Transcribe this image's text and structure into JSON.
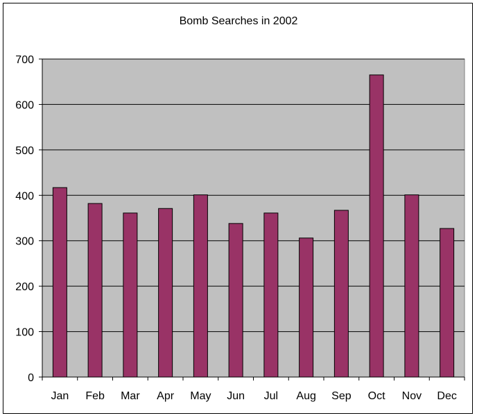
{
  "chart_data": {
    "type": "bar",
    "title": "Bomb Searches in 2002",
    "xlabel": "",
    "ylabel": "",
    "categories": [
      "Jan",
      "Feb",
      "Mar",
      "Apr",
      "May",
      "Jun",
      "Jul",
      "Aug",
      "Sep",
      "Oct",
      "Nov",
      "Dec"
    ],
    "values": [
      417,
      382,
      361,
      371,
      401,
      338,
      361,
      306,
      367,
      665,
      401,
      327
    ],
    "ylim": [
      0,
      700
    ],
    "yticks": [
      0,
      100,
      200,
      300,
      400,
      500,
      600,
      700
    ],
    "grid": true,
    "legend": "none",
    "colors": {
      "bar_fill": "#993366",
      "bar_stroke": "#000000",
      "plot_background": "#c0c0c0",
      "gridline": "#000000"
    }
  }
}
